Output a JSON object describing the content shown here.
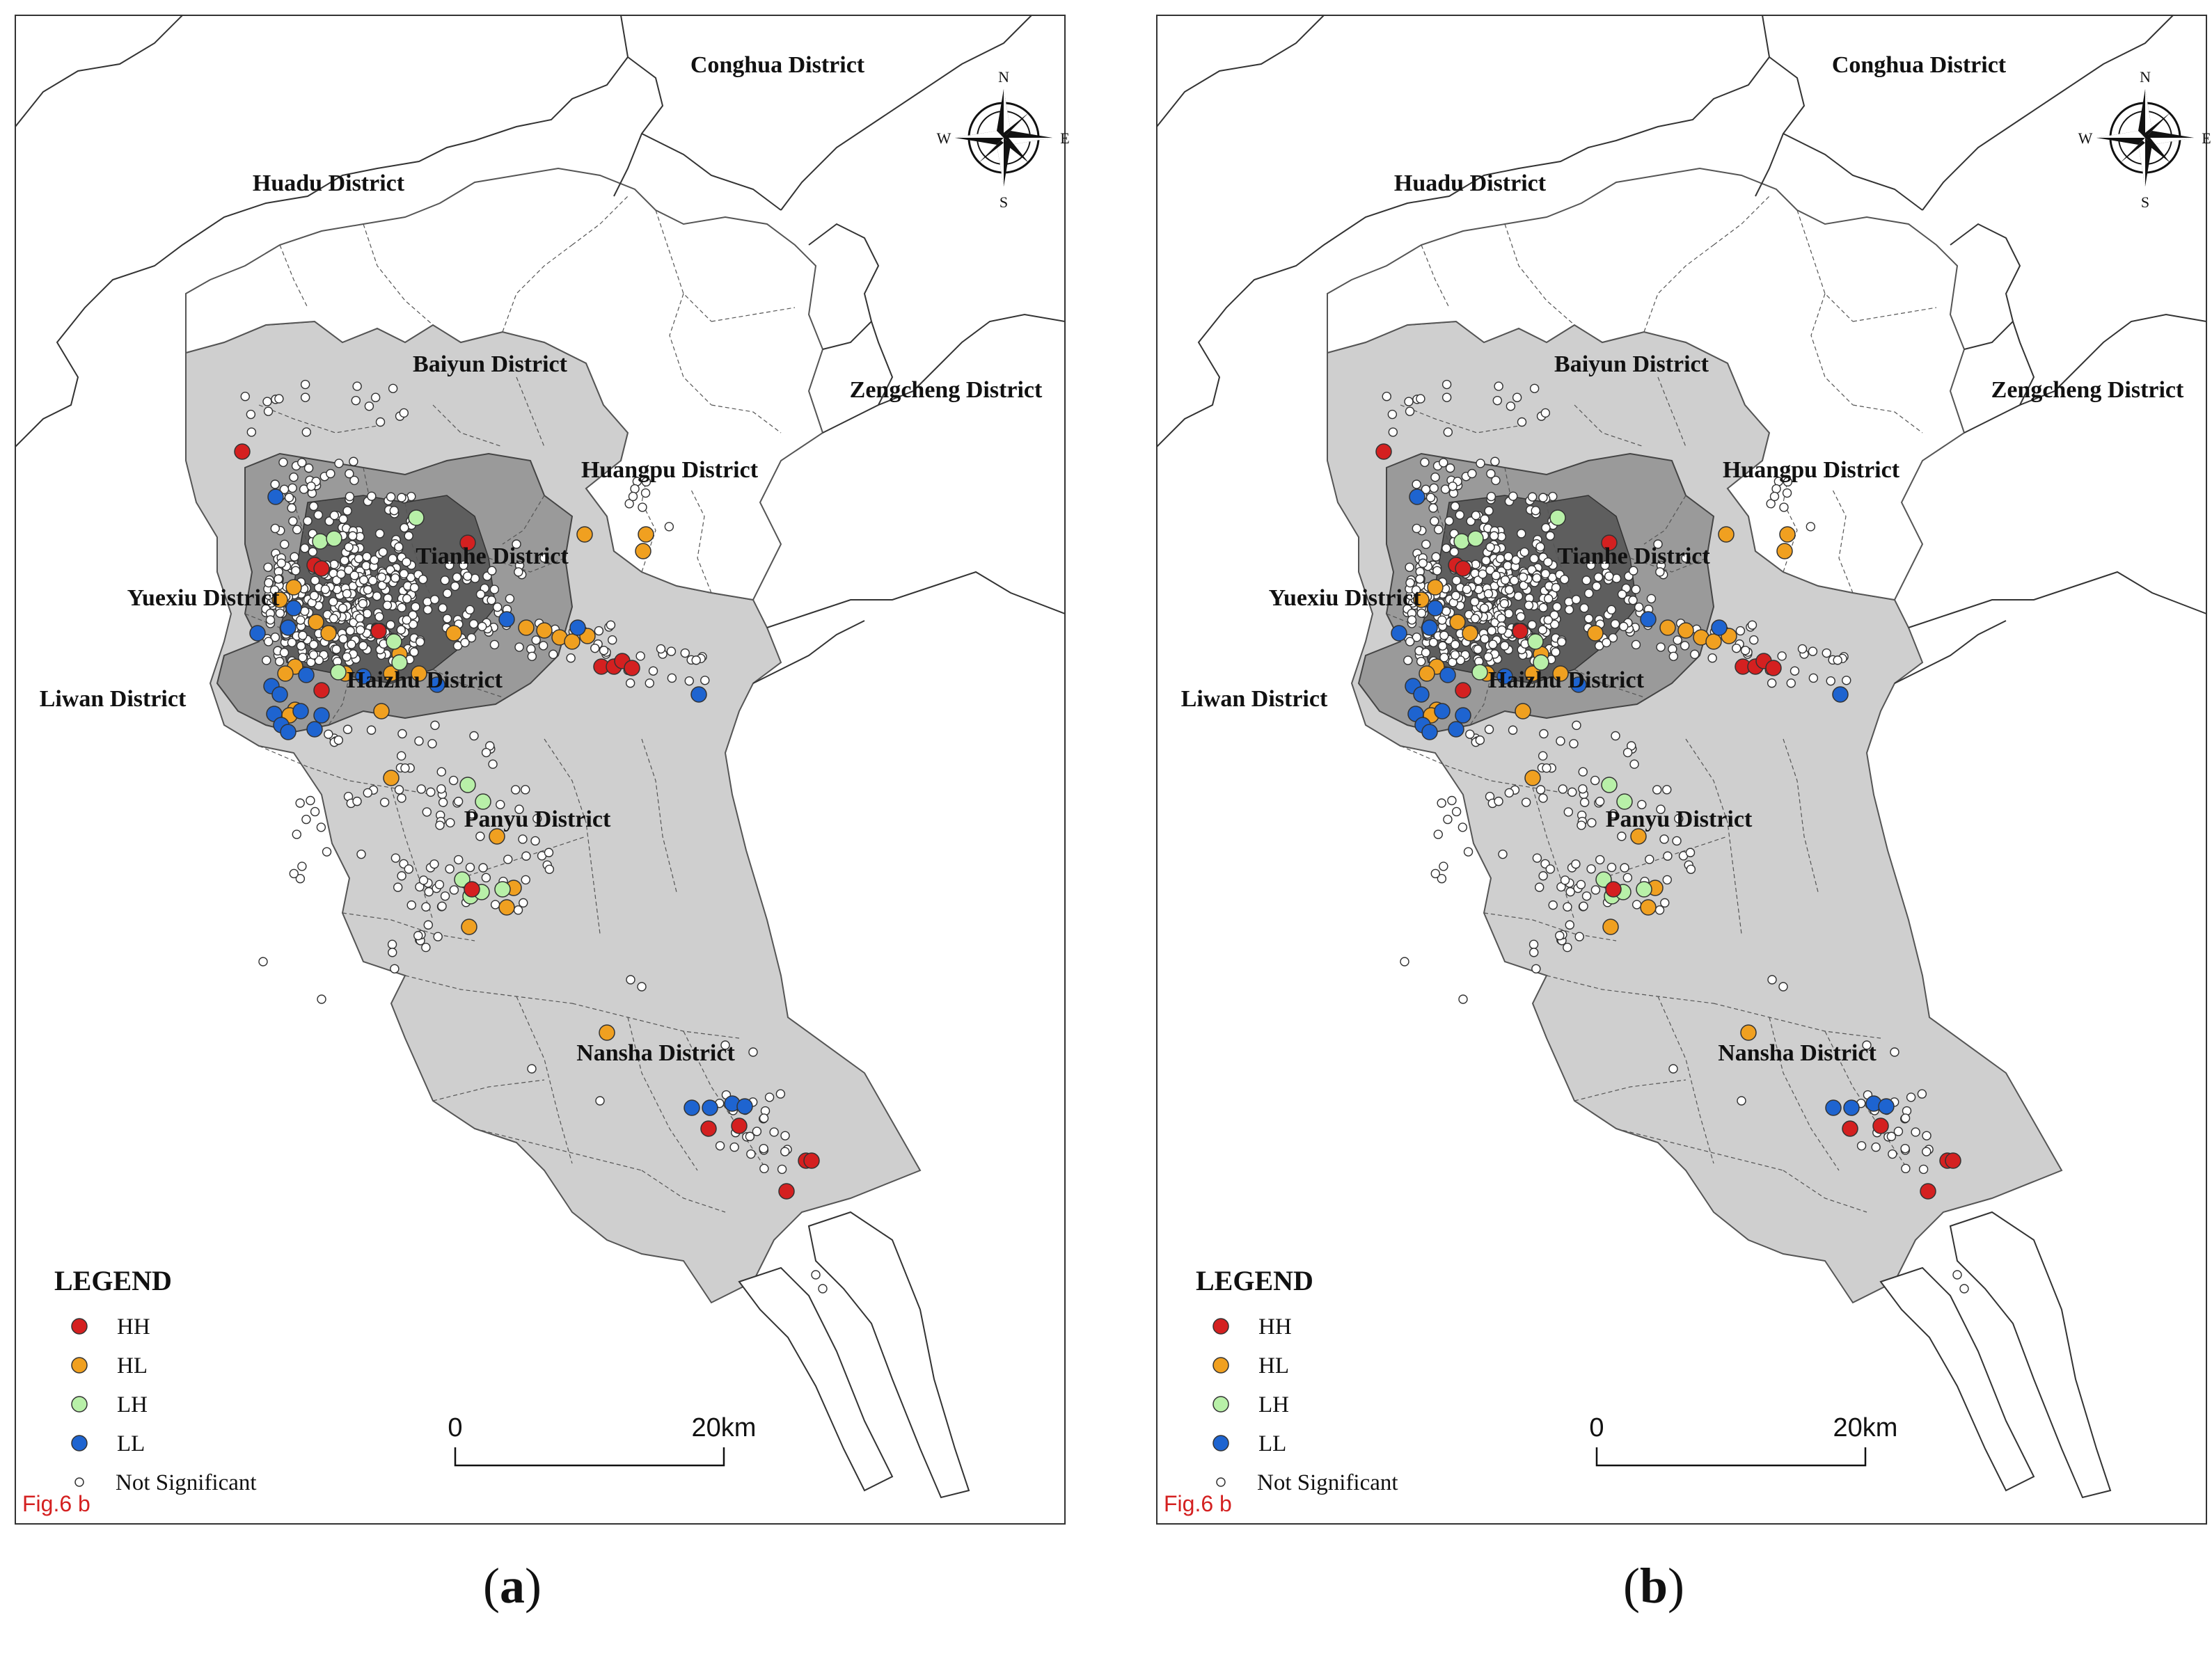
{
  "panels": [
    {
      "id": "a",
      "caption_label": "a",
      "fig_tag": "Fig.6 b",
      "compass": {
        "n": "N",
        "s": "S",
        "e": "E",
        "w": "W"
      },
      "districts": [
        "Conghua District",
        "Huadu District",
        "Baiyun District",
        "Zengcheng District",
        "Huangpu District",
        "Tianhe District",
        "Yuexiu District",
        "Liwan District",
        "Haizhu District",
        "Panyu District",
        "Nansha District"
      ],
      "legend": {
        "title": "LEGEND",
        "items": [
          {
            "label": "HH",
            "color": "#d42020"
          },
          {
            "label": "HL",
            "color": "#f0a020"
          },
          {
            "label": "LH",
            "color": "#b8f0a8"
          },
          {
            "label": "LL",
            "color": "#1e64d0"
          },
          {
            "label": "Not Significant",
            "color": "#ffffff"
          }
        ]
      },
      "scale": {
        "start": "0",
        "end": "20km"
      }
    },
    {
      "id": "b",
      "caption_label": "b",
      "fig_tag": "Fig.6 b",
      "compass": {
        "n": "N",
        "s": "S",
        "e": "E",
        "w": "W"
      },
      "districts": [
        "Conghua District",
        "Huadu District",
        "Baiyun District",
        "Zengcheng District",
        "Huangpu District",
        "Tianhe District",
        "Yuexiu District",
        "Liwan District",
        "Haizhu District",
        "Panyu District",
        "Nansha District"
      ],
      "legend": {
        "title": "LEGEND",
        "items": [
          {
            "label": "HH",
            "color": "#d42020"
          },
          {
            "label": "HL",
            "color": "#f0a020"
          },
          {
            "label": "LH",
            "color": "#b8f0a8"
          },
          {
            "label": "LL",
            "color": "#1e64d0"
          },
          {
            "label": "Not Significant",
            "color": "#ffffff"
          }
        ]
      },
      "scale": {
        "start": "0",
        "end": "20km"
      }
    }
  ]
}
